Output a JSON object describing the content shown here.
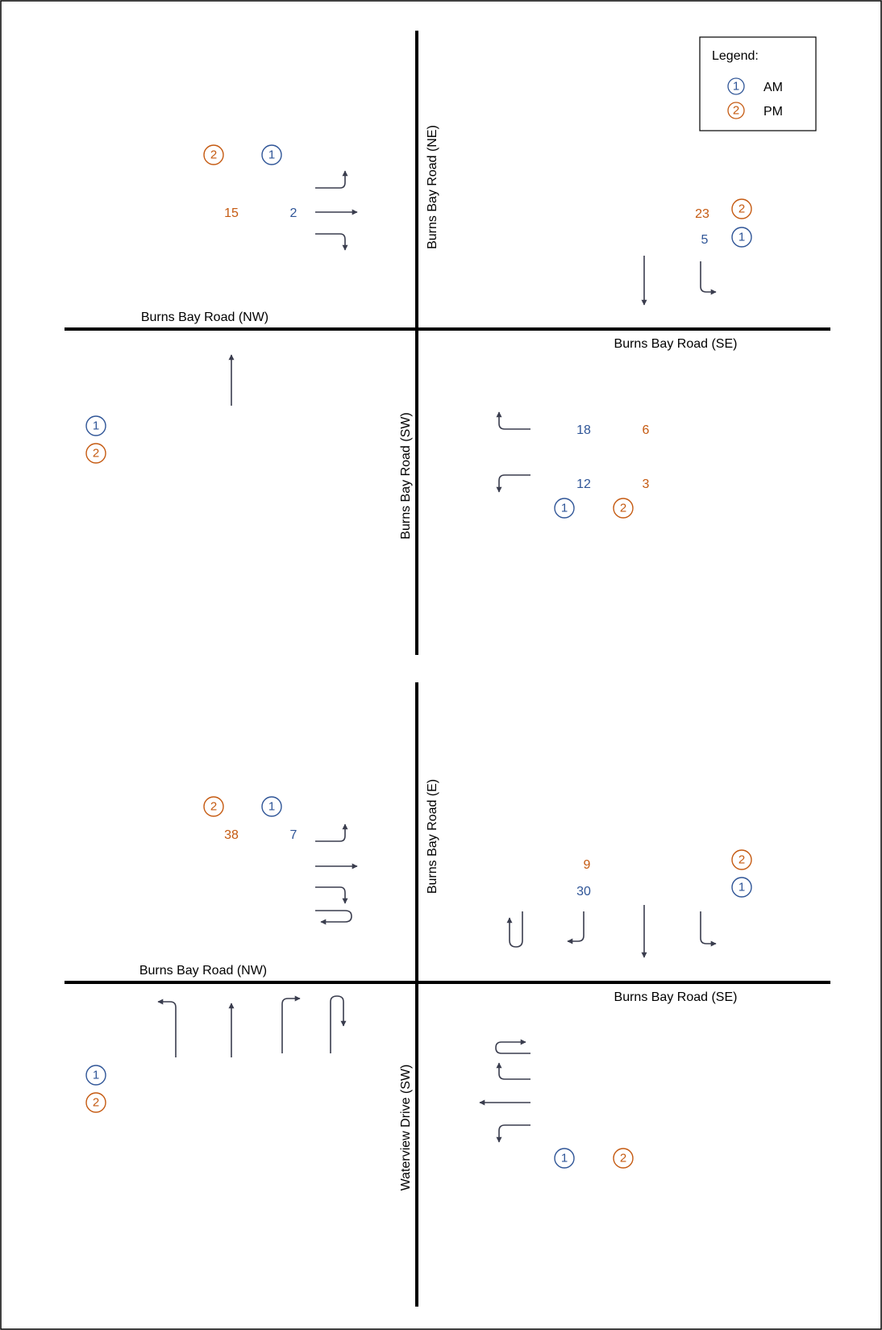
{
  "colors": {
    "am": "#2f5597",
    "pm": "#c55a11",
    "road": "#000000",
    "arrow": "#3a3d4e"
  },
  "legend": {
    "title": "Legend:",
    "am": {
      "marker": "1",
      "label": "AM"
    },
    "pm": {
      "marker": "2",
      "label": "PM"
    }
  },
  "top": {
    "roads": {
      "ne": "Burns Bay Road (NE)",
      "nw": "Burns Bay Road (NW)",
      "se": "Burns Bay Road (SE)",
      "sw": "Burns Bay Road (SW)"
    },
    "nw_approach": {
      "pm": "15",
      "am": "2"
    },
    "ne_approach": {
      "pm": "23",
      "am": "5"
    },
    "se_approach": {
      "am_right": "18",
      "pm_right": "6",
      "am_left": "12",
      "pm_left": "3"
    }
  },
  "bottom": {
    "roads": {
      "e": "Burns Bay Road (E)",
      "nw": "Burns Bay Road (NW)",
      "se": "Burns Bay Road (SE)",
      "sw": "Waterview Drive (SW)"
    },
    "nw_approach": {
      "pm": "38",
      "am": "7"
    },
    "ne_approach": {
      "pm": "9",
      "am": "30"
    }
  }
}
